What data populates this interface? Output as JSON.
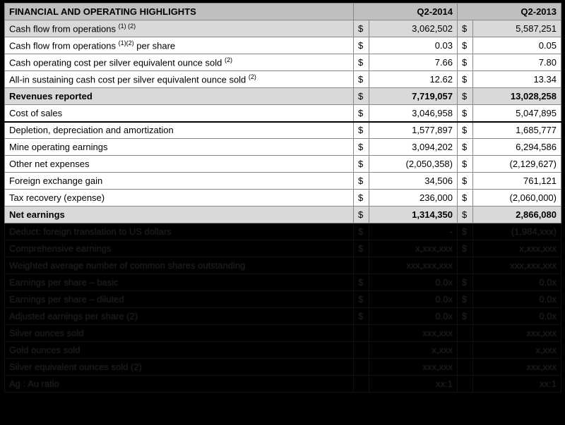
{
  "header": {
    "title": "FINANCIAL AND OPERATING HIGHLIGHTS",
    "col1": "Q2-2014",
    "col2": "Q2-2013"
  },
  "currency": "$",
  "divider_after_index": 5,
  "rows": [
    {
      "label_html": "Cash flow from operations <sup>(1) (2)</sup>",
      "shade": "shaded",
      "bold": false,
      "c1": "3,062,502",
      "c2": "5,587,251"
    },
    {
      "label_html": "Cash flow from operations <sup>(1)(2)</sup> per share",
      "shade": "white",
      "bold": false,
      "c1": "0.03",
      "c2": "0.05"
    },
    {
      "label_html": "Cash operating cost per silver equivalent ounce sold <sup>(2)</sup>",
      "shade": "white",
      "bold": false,
      "c1": "7.66",
      "c2": "7.80"
    },
    {
      "label_html": "All-in sustaining cash cost per silver equivalent ounce sold <sup>(2)</sup>",
      "shade": "white",
      "bold": false,
      "c1": "12.62",
      "c2": "13.34"
    },
    {
      "label_html": "Revenues reported",
      "shade": "shaded",
      "bold": true,
      "c1": "7,719,057",
      "c2": "13,028,258"
    },
    {
      "label_html": "Cost of sales",
      "shade": "white",
      "bold": false,
      "c1": "3,046,958",
      "c2": "5,047,895"
    },
    {
      "label_html": "Depletion, depreciation and amortization",
      "shade": "white",
      "bold": false,
      "c1": "1,577,897",
      "c2": "1,685,777"
    },
    {
      "label_html": "Mine operating earnings",
      "shade": "white",
      "bold": false,
      "c1": "3,094,202",
      "c2": "6,294,586"
    },
    {
      "label_html": "Other net expenses",
      "shade": "white",
      "bold": false,
      "c1": "(2,050,358)",
      "c2": "(2,129,627)"
    },
    {
      "label_html": "Foreign exchange gain",
      "shade": "white",
      "bold": false,
      "c1": "34,506",
      "c2": "761,121"
    },
    {
      "label_html": "Tax recovery (expense)",
      "shade": "white",
      "bold": false,
      "c1": "236,000",
      "c2": "(2,060,000)"
    },
    {
      "label_html": "Net earnings",
      "shade": "shaded",
      "bold": true,
      "c1": "1,314,350",
      "c2": "2,866,080"
    }
  ],
  "obscured_rows": [
    {
      "label": "Deduct: foreign translation to US dollars",
      "has_sym": true,
      "c1": "-",
      "c2": "(1,984,xxx)"
    },
    {
      "label": "Comprehensive earnings",
      "has_sym": true,
      "c1": "x,xxx,xxx",
      "c2": "x,xxx,xxx"
    },
    {
      "label": "Weighted average number of common shares outstanding",
      "has_sym": false,
      "c1": "xxx,xxx,xxx",
      "c2": "xxx,xxx,xxx"
    },
    {
      "label": "Earnings per share – basic",
      "has_sym": true,
      "c1": "0.0x",
      "c2": "0.0x"
    },
    {
      "label": "Earnings per share – diluted",
      "has_sym": true,
      "c1": "0.0x",
      "c2": "0.0x"
    },
    {
      "label": "Adjusted earnings per share (2)",
      "has_sym": true,
      "c1": "0.0x",
      "c2": "0.0x"
    },
    {
      "label": "Silver ounces sold",
      "has_sym": false,
      "c1": "xxx,xxx",
      "c2": "xxx,xxx"
    },
    {
      "label": "Gold ounces sold",
      "has_sym": false,
      "c1": "x,xxx",
      "c2": "x,xxx"
    },
    {
      "label": "Silver equivalent ounces sold (2)",
      "has_sym": false,
      "c1": "xxx,xxx",
      "c2": "xxx,xxx"
    },
    {
      "label": "Ag : Au ratio",
      "has_sym": false,
      "c1": "xx:1",
      "c2": "xx:1"
    }
  ]
}
